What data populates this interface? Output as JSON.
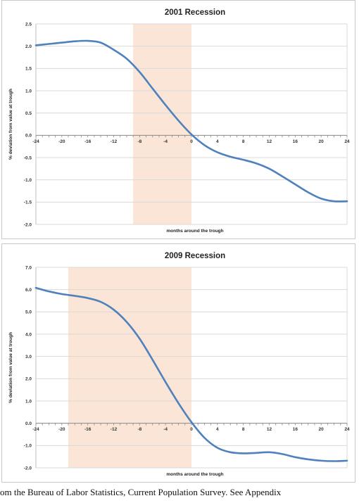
{
  "chart_data": [
    {
      "type": "line",
      "title": "2001 Recession",
      "xlabel": "months around the trough",
      "ylabel": "% deviation from value at trough",
      "xlim": [
        -24,
        24
      ],
      "ylim": [
        -2.0,
        2.5
      ],
      "ytick_values": [
        -2.0,
        -1.5,
        -1.0,
        -0.5,
        0.0,
        0.5,
        1.0,
        1.5,
        2.0,
        2.5
      ],
      "ytick_labels": [
        "-2.0",
        "-1.5",
        "-1.0",
        "-0.5",
        "0.0",
        "0.5",
        "1.0",
        "1.5",
        "2.0",
        "2.5"
      ],
      "xtick_values": [
        -24,
        -20,
        -16,
        -12,
        -8,
        -4,
        0,
        4,
        8,
        12,
        16,
        20,
        24
      ],
      "xtick_labels": [
        "-24",
        "-20",
        "-16",
        "-12",
        "-8",
        "-4",
        "0",
        "4",
        "8",
        "12",
        "16",
        "20",
        "24"
      ],
      "recession_shading": [
        -9,
        0
      ],
      "grid": true,
      "colors": {
        "line": "#4f81bd",
        "shading": "#fbe5d6",
        "grid": "#d9d9d9"
      },
      "series": [
        {
          "x": [
            -24,
            -22,
            -20,
            -18,
            -16,
            -14,
            -12,
            -10,
            -8,
            -6,
            -4,
            -2,
            0,
            2,
            4,
            6,
            8,
            10,
            12,
            14,
            16,
            18,
            20,
            22,
            24
          ],
          "values": [
            2.02,
            2.05,
            2.08,
            2.11,
            2.12,
            2.08,
            1.92,
            1.72,
            1.42,
            1.05,
            0.68,
            0.33,
            0.02,
            -0.22,
            -0.38,
            -0.48,
            -0.55,
            -0.63,
            -0.75,
            -0.92,
            -1.1,
            -1.28,
            -1.42,
            -1.48,
            -1.48
          ]
        }
      ]
    },
    {
      "type": "line",
      "title": "2009 Recession",
      "xlabel": "months around the trough",
      "ylabel": "% deviation from value at trough",
      "xlim": [
        -24,
        24
      ],
      "ylim": [
        -2.0,
        7.0
      ],
      "ytick_values": [
        -2.0,
        -1.0,
        0.0,
        1.0,
        2.0,
        3.0,
        4.0,
        5.0,
        6.0,
        7.0
      ],
      "ytick_labels": [
        "-2.0",
        "-1.0",
        "0.0",
        "1.0",
        "2.0",
        "3.0",
        "4.0",
        "5.0",
        "6.0",
        "7.0"
      ],
      "xtick_values": [
        -24,
        -20,
        -16,
        -12,
        -8,
        -4,
        0,
        4,
        8,
        12,
        16,
        20,
        24
      ],
      "xtick_labels": [
        "-24",
        "-20",
        "-16",
        "-12",
        "-8",
        "-4",
        "0",
        "4",
        "8",
        "12",
        "16",
        "20",
        "24"
      ],
      "recession_shading": [
        -19,
        0
      ],
      "grid": true,
      "colors": {
        "line": "#4f81bd",
        "shading": "#fbe5d6",
        "grid": "#d9d9d9"
      },
      "series": [
        {
          "x": [
            -24,
            -22,
            -20,
            -18,
            -16,
            -14,
            -12,
            -10,
            -8,
            -6,
            -4,
            -2,
            0,
            2,
            4,
            6,
            8,
            10,
            12,
            14,
            16,
            18,
            20,
            22,
            24
          ],
          "values": [
            6.08,
            5.92,
            5.8,
            5.72,
            5.62,
            5.45,
            5.1,
            4.55,
            3.8,
            2.85,
            1.85,
            0.9,
            0.05,
            -0.65,
            -1.1,
            -1.3,
            -1.35,
            -1.33,
            -1.3,
            -1.38,
            -1.52,
            -1.62,
            -1.68,
            -1.7,
            -1.68
          ]
        }
      ]
    }
  ],
  "caption": "om the Bureau of Labor Statistics, Current Population Survey. See Appendix"
}
